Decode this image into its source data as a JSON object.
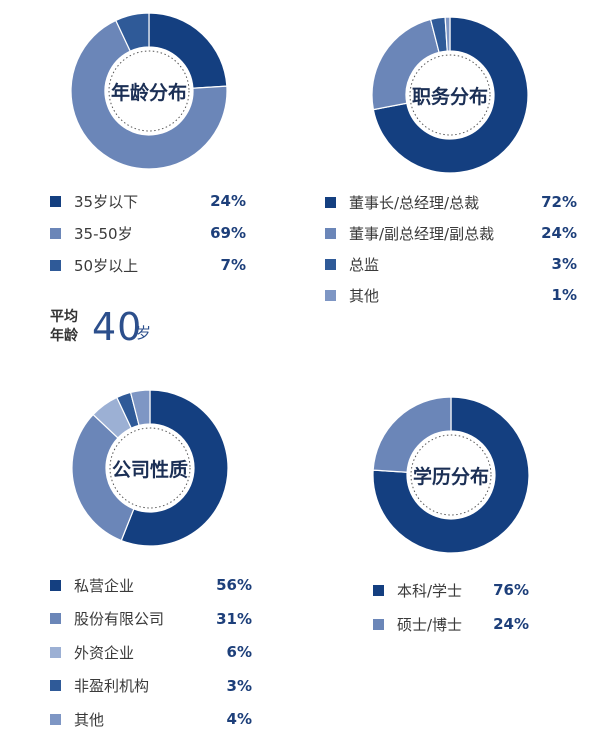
{
  "colors": {
    "dark": "#143f80",
    "mid": "#6b86b8",
    "light": "#9cb0d4",
    "deep": "#2f5a98",
    "pale": "#7e96c4"
  },
  "average_age": {
    "label_line1": "平均",
    "label_line2": "年龄",
    "value": "40",
    "unit": "岁"
  },
  "chart_data": [
    {
      "type": "pie",
      "title": "年龄分布",
      "categories": [
        "35岁以下",
        "35-50岁",
        "50岁以上"
      ],
      "values": [
        24,
        69,
        7
      ],
      "value_labels": [
        "24%",
        "69%",
        "7%"
      ],
      "colors": [
        "#143f80",
        "#6b86b8",
        "#2f5a98"
      ]
    },
    {
      "type": "pie",
      "title": "职务分布",
      "categories": [
        "董事长/总经理/总裁",
        "董事/副总经理/副总裁",
        "总监",
        "其他"
      ],
      "values": [
        72,
        24,
        3,
        1
      ],
      "value_labels": [
        "72%",
        "24%",
        "3%",
        "1%"
      ],
      "colors": [
        "#143f80",
        "#6b86b8",
        "#2f5a98",
        "#7e96c4"
      ]
    },
    {
      "type": "pie",
      "title": "公司性质",
      "categories": [
        "私营企业",
        "股份有限公司",
        "外资企业",
        "非盈利机构",
        "其他"
      ],
      "values": [
        56,
        31,
        6,
        3,
        4
      ],
      "value_labels": [
        "56%",
        "31%",
        "6%",
        "3%",
        "4%"
      ],
      "colors": [
        "#143f80",
        "#6b86b8",
        "#9cb0d4",
        "#2f5a98",
        "#7e96c4"
      ]
    },
    {
      "type": "pie",
      "title": "学历分布",
      "categories": [
        "本科/学士",
        "硕士/博士"
      ],
      "values": [
        76,
        24
      ],
      "value_labels": [
        "76%",
        "24%"
      ],
      "colors": [
        "#143f80",
        "#6b86b8"
      ]
    }
  ]
}
